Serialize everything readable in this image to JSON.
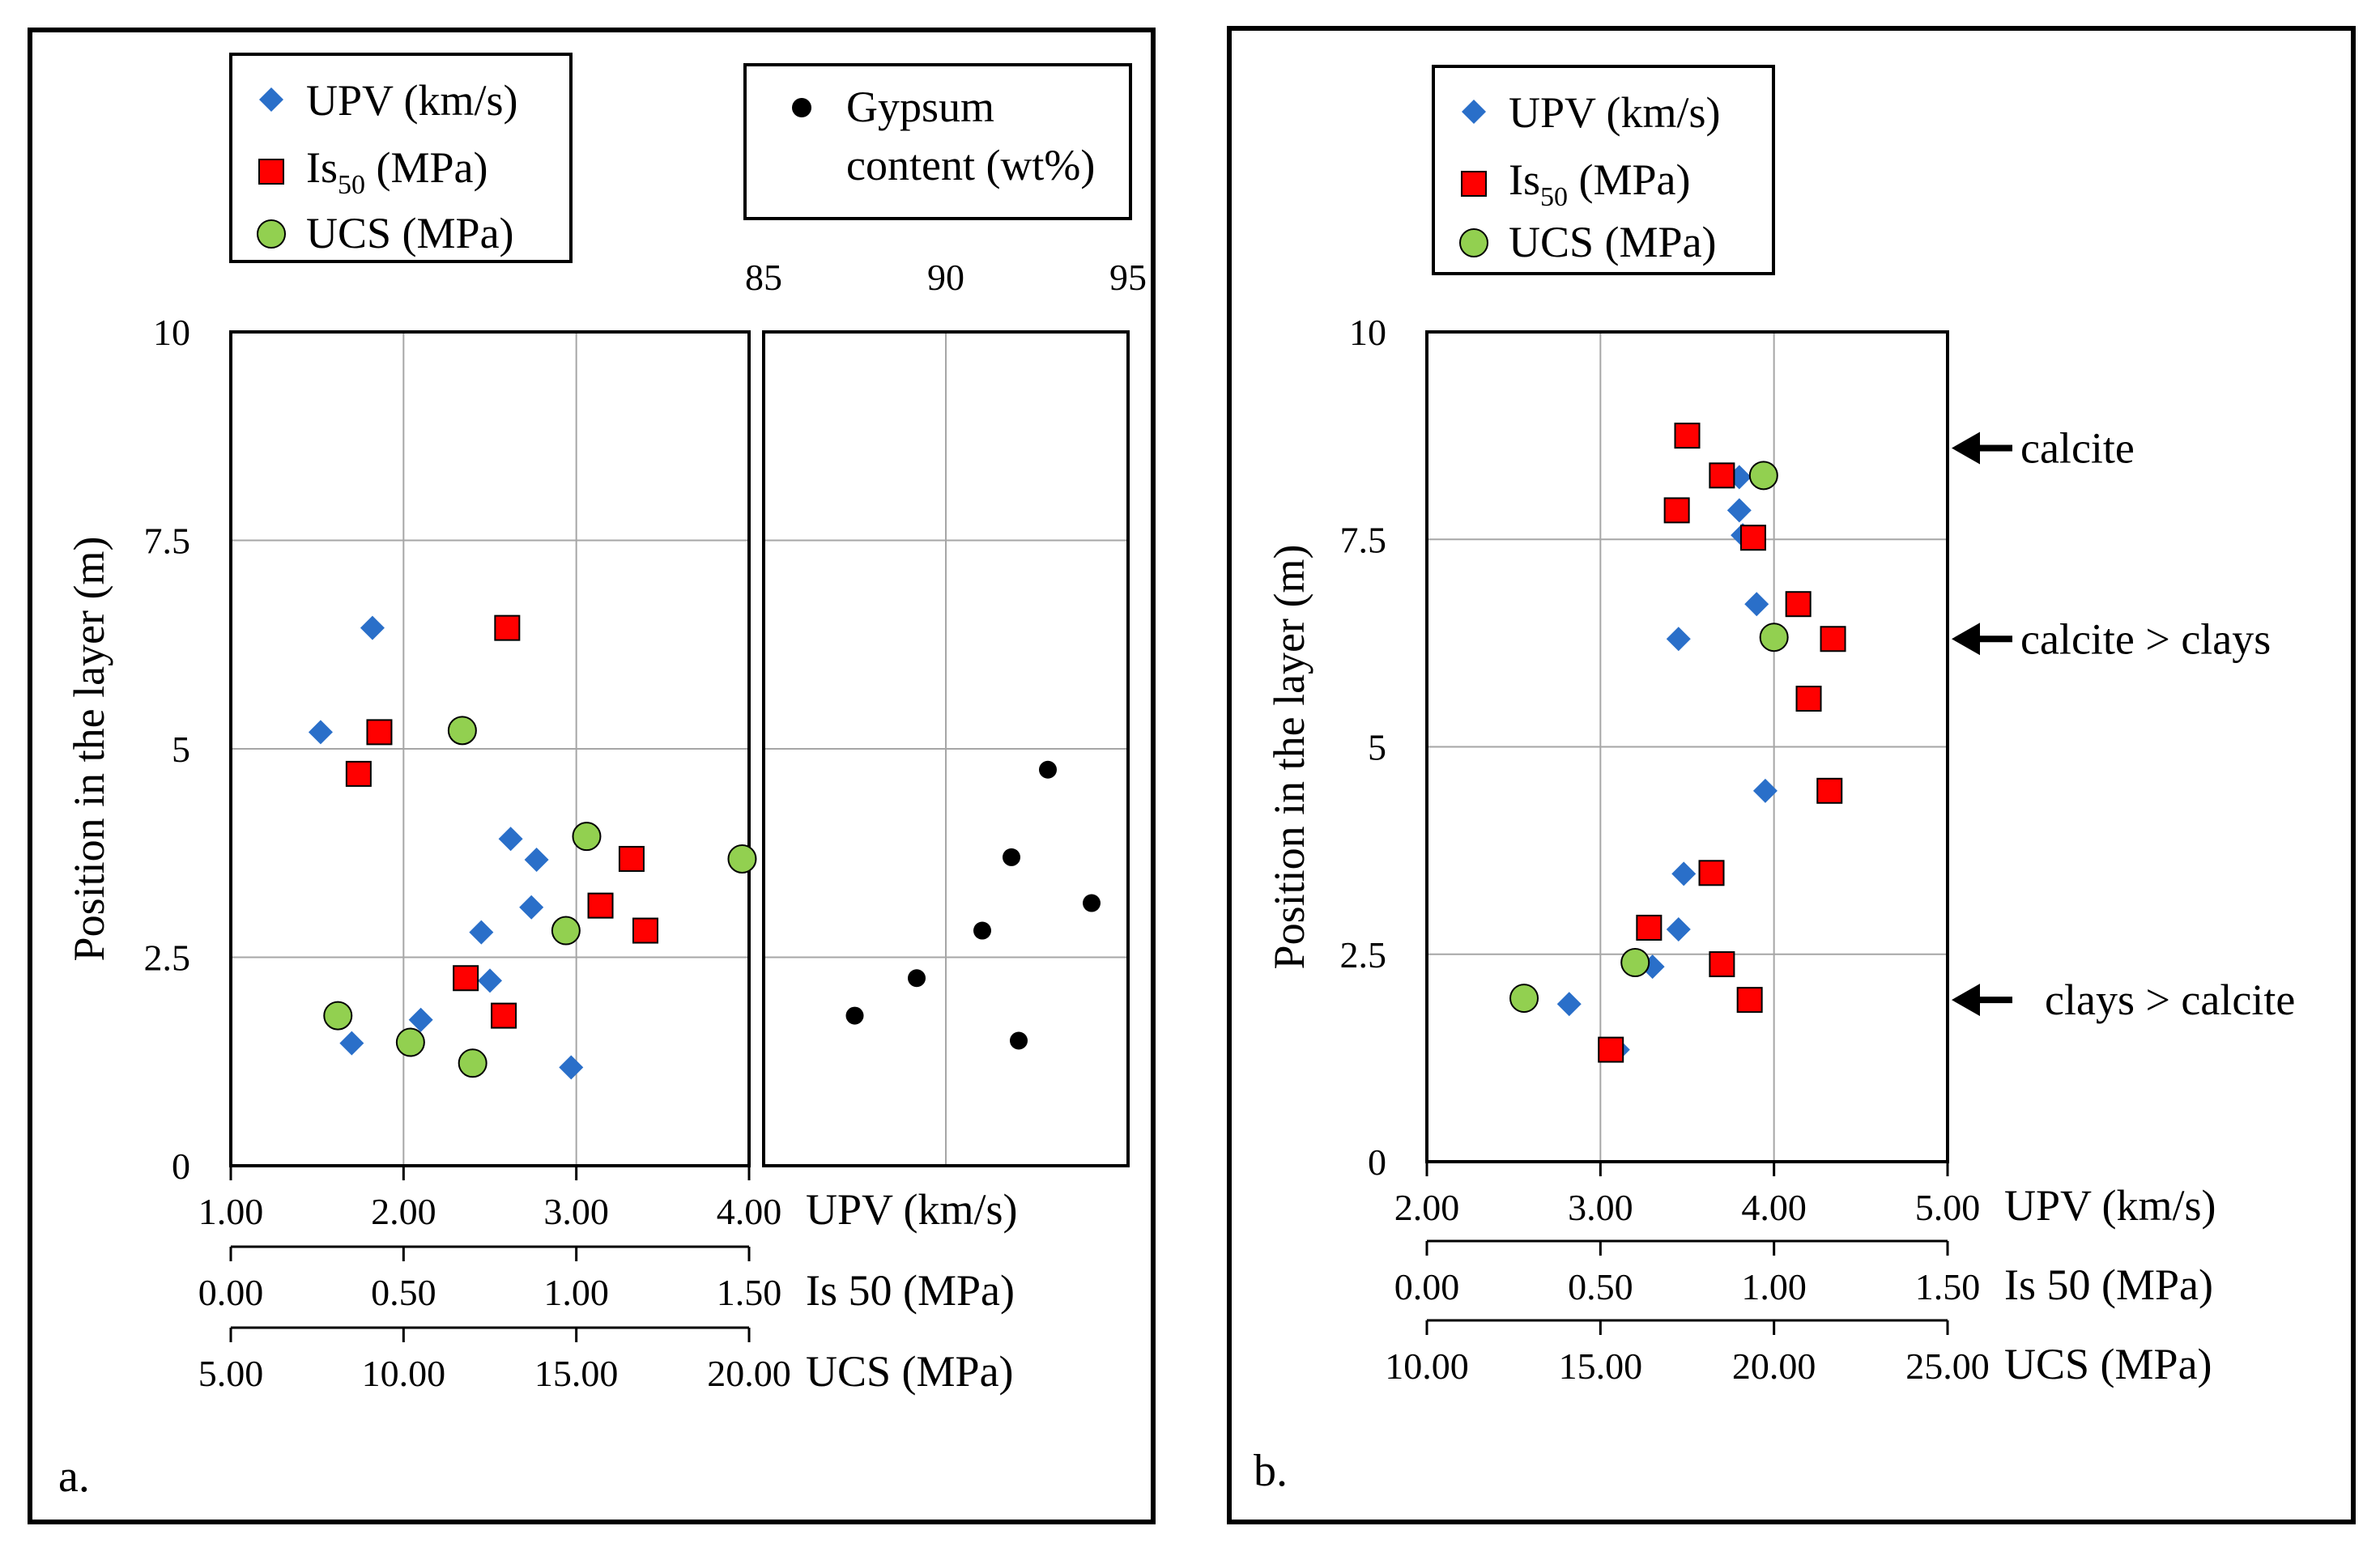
{
  "colors": {
    "upv": "#2a6fc9",
    "is50": "#ff0000",
    "ucs": "#92d050",
    "gypsum": "#000000",
    "grid": "#a6a6a6"
  },
  "chart_data": [
    {
      "type": "scatter",
      "panel_label": "a.",
      "legend": {
        "upv": "UPV (km/s)",
        "is50": "Is",
        "is50_sub": "50",
        "is50_unit": " (MPa)",
        "ucs": "UCS (MPa)"
      },
      "ylabel": "Position in the layer (m)",
      "ylim": [
        0,
        10
      ],
      "yticks": [
        "0",
        "2.5",
        "5",
        "7.5",
        "10"
      ],
      "x_axes": [
        {
          "key": "upv",
          "label": "UPV (km/s)",
          "range": [
            1,
            4
          ],
          "ticks": [
            "1.00",
            "2.00",
            "3.00",
            "4.00"
          ]
        },
        {
          "key": "is50",
          "label": "Is 50 (MPa)",
          "range": [
            0,
            1.5
          ],
          "ticks": [
            "0.00",
            "0.50",
            "1.00",
            "1.50"
          ]
        },
        {
          "key": "ucs",
          "label": "UCS (MPa)",
          "range": [
            5,
            20
          ],
          "ticks": [
            "5.00",
            "10.00",
            "15.00",
            "20.00"
          ]
        }
      ],
      "series": [
        {
          "key": "upv",
          "name": "UPV (km/s)",
          "points": [
            [
              1.82,
              6.45
            ],
            [
              1.52,
              5.2
            ],
            [
              2.62,
              3.92
            ],
            [
              2.77,
              3.67
            ],
            [
              2.74,
              3.1
            ],
            [
              2.45,
              2.8
            ],
            [
              2.5,
              2.22
            ],
            [
              2.1,
              1.75
            ],
            [
              1.7,
              1.47
            ],
            [
              2.97,
              1.18
            ]
          ]
        },
        {
          "key": "is50",
          "name": "Is50 (MPa)",
          "points": [
            [
              0.8,
              6.45
            ],
            [
              0.43,
              5.2
            ],
            [
              0.37,
              4.7
            ],
            [
              1.16,
              3.68
            ],
            [
              1.07,
              3.12
            ],
            [
              1.2,
              2.82
            ],
            [
              0.68,
              2.25
            ],
            [
              0.79,
              1.8
            ]
          ]
        },
        {
          "key": "ucs",
          "name": "UCS (MPa)",
          "points": [
            [
              11.7,
              5.22
            ],
            [
              15.3,
              3.95
            ],
            [
              19.8,
              3.68
            ],
            [
              14.7,
              2.82
            ],
            [
              8.1,
              1.8
            ],
            [
              10.2,
              1.48
            ],
            [
              12.0,
              1.23
            ]
          ]
        }
      ],
      "gypsum": {
        "legend": [
          "Gypsum",
          "content (wt%)"
        ],
        "xlim": [
          85,
          95
        ],
        "xticks": [
          "85",
          "90",
          "95"
        ],
        "points": [
          [
            87.5,
            1.8
          ],
          [
            89.2,
            2.25
          ],
          [
            91.0,
            2.82
          ],
          [
            91.8,
            3.7
          ],
          [
            92.8,
            4.75
          ],
          [
            92.0,
            1.5
          ],
          [
            94.0,
            3.15
          ]
        ]
      }
    },
    {
      "type": "scatter",
      "panel_label": "b.",
      "legend": {
        "upv": "UPV (km/s)",
        "is50": "Is",
        "is50_sub": "50",
        "is50_unit": " (MPa)",
        "ucs": "UCS (MPa)"
      },
      "ylabel": "Position in the layer (m)",
      "ylim": [
        0,
        10
      ],
      "yticks": [
        "0",
        "2.5",
        "5",
        "7.5",
        "10"
      ],
      "x_axes": [
        {
          "key": "upv",
          "label": "UPV (km/s)",
          "range": [
            2,
            5
          ],
          "ticks": [
            "2.00",
            "3.00",
            "4.00",
            "5.00"
          ]
        },
        {
          "key": "is50",
          "label": "Is 50 (MPa)",
          "range": [
            0,
            1.5
          ],
          "ticks": [
            "0.00",
            "0.50",
            "1.00",
            "1.50"
          ]
        },
        {
          "key": "ucs",
          "label": "UCS (MPa)",
          "range": [
            10,
            25
          ],
          "ticks": [
            "10.00",
            "15.00",
            "20.00",
            "25.00"
          ]
        }
      ],
      "series": [
        {
          "key": "upv",
          "name": "UPV (km/s)",
          "points": [
            [
              3.8,
              8.25
            ],
            [
              3.8,
              7.85
            ],
            [
              3.82,
              7.55
            ],
            [
              3.9,
              6.72
            ],
            [
              3.45,
              6.3
            ],
            [
              3.95,
              4.47
            ],
            [
              3.48,
              3.47
            ],
            [
              3.45,
              2.8
            ],
            [
              3.3,
              2.35
            ],
            [
              2.82,
              1.9
            ],
            [
              3.1,
              1.35
            ]
          ]
        },
        {
          "key": "is50",
          "name": "Is50 (MPa)",
          "points": [
            [
              0.75,
              8.75
            ],
            [
              0.85,
              8.27
            ],
            [
              0.72,
              7.85
            ],
            [
              0.94,
              7.52
            ],
            [
              1.07,
              6.72
            ],
            [
              1.17,
              6.3
            ],
            [
              1.1,
              5.58
            ],
            [
              1.16,
              4.47
            ],
            [
              0.82,
              3.48
            ],
            [
              0.64,
              2.82
            ],
            [
              0.85,
              2.38
            ],
            [
              0.93,
              1.95
            ],
            [
              0.53,
              1.35
            ]
          ]
        },
        {
          "key": "ucs",
          "name": "UCS (MPa)",
          "points": [
            [
              19.7,
              8.27
            ],
            [
              20.0,
              6.32
            ],
            [
              16.0,
              2.4
            ],
            [
              12.8,
              1.97
            ]
          ]
        }
      ],
      "annotations": [
        {
          "text": "calcite",
          "y": 8.6
        },
        {
          "text": "calcite > clays",
          "y": 6.3
        },
        {
          "text": "clays > calcite",
          "y": 1.95
        }
      ]
    }
  ]
}
